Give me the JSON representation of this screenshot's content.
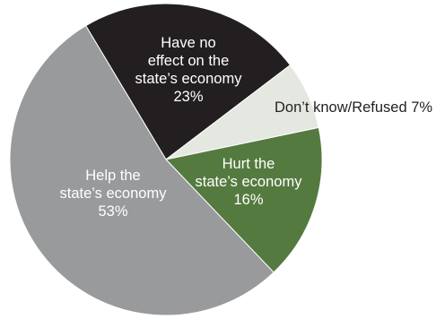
{
  "chart_data": {
    "type": "pie",
    "title": "",
    "slices": [
      {
        "label_lines": [
          "Have no",
          "effect on the",
          "state’s economy"
        ],
        "value_label": "23%",
        "value": 23,
        "color": "#231f20",
        "text_color": "#ffffff"
      },
      {
        "label_lines": [
          "Don’t know/Refused 7%"
        ],
        "value_label": "",
        "value": 7,
        "color": "#e4e8e0",
        "text_color": "#231f20"
      },
      {
        "label_lines": [
          "Hurt the",
          "state’s economy"
        ],
        "value_label": "16%",
        "value": 16,
        "color": "#557a3f",
        "text_color": "#ffffff"
      },
      {
        "label_lines": [
          "Help the",
          "state’s economy"
        ],
        "value_label": "53%",
        "value": 53,
        "color": "#999a9c",
        "text_color": "#ffffff"
      }
    ],
    "legend": "none"
  }
}
